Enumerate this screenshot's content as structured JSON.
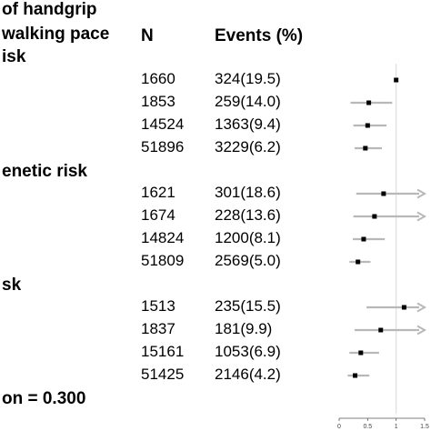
{
  "header": {
    "label_line1": "of handgrip",
    "label_line2": "walking pace",
    "label_line3": "isk",
    "col_n": "N",
    "col_events": "Events (%)"
  },
  "groups": [
    {
      "label": ""
    },
    {
      "label": "enetic risk"
    },
    {
      "label": "sk"
    }
  ],
  "footer": {
    "interaction": "on = 0.300"
  },
  "chart_data": {
    "type": "forest",
    "reference_line": 1,
    "xlim": [
      0,
      1.5
    ],
    "x_ticks": [
      {
        "value": 0,
        "label": "0"
      },
      {
        "value": 0.5,
        "label": "0.5"
      },
      {
        "value": 1,
        "label": "1"
      },
      {
        "value": 1.5,
        "label": "1.5"
      }
    ],
    "rows": [
      {
        "group": 0,
        "n": "1660",
        "events": "324(19.5)",
        "est": 1.0,
        "lo": 1.0,
        "hi": 1.0,
        "arrow": false
      },
      {
        "group": 0,
        "n": "1853",
        "events": "259(14.0)",
        "est": 0.52,
        "lo": 0.2,
        "hi": 0.93,
        "arrow": false
      },
      {
        "group": 0,
        "n": "14524",
        "events": "1363(9.4)",
        "est": 0.5,
        "lo": 0.25,
        "hi": 0.83,
        "arrow": false
      },
      {
        "group": 0,
        "n": "51896",
        "events": "3229(6.2)",
        "est": 0.46,
        "lo": 0.27,
        "hi": 0.75,
        "arrow": false
      },
      {
        "group": 1,
        "n": "1621",
        "events": "301(18.6)",
        "est": 0.78,
        "lo": 0.3,
        "hi": 1.5,
        "arrow": true
      },
      {
        "group": 1,
        "n": "1674",
        "events": "228(13.6)",
        "est": 0.62,
        "lo": 0.25,
        "hi": 1.5,
        "arrow": true
      },
      {
        "group": 1,
        "n": "14824",
        "events": "1200(8.1)",
        "est": 0.43,
        "lo": 0.24,
        "hi": 0.8,
        "arrow": false
      },
      {
        "group": 1,
        "n": "51809",
        "events": "2569(5.0)",
        "est": 0.33,
        "lo": 0.18,
        "hi": 0.55,
        "arrow": false
      },
      {
        "group": 2,
        "n": "1513",
        "events": "235(15.5)",
        "est": 1.14,
        "lo": 0.48,
        "hi": 1.5,
        "arrow": true
      },
      {
        "group": 2,
        "n": "1837",
        "events": "181(9.9)",
        "est": 0.73,
        "lo": 0.27,
        "hi": 1.5,
        "arrow": true
      },
      {
        "group": 2,
        "n": "15161",
        "events": "1053(6.9)",
        "est": 0.38,
        "lo": 0.18,
        "hi": 0.7,
        "arrow": false
      },
      {
        "group": 2,
        "n": "51425",
        "events": "2146(4.2)",
        "est": 0.28,
        "lo": 0.15,
        "hi": 0.53,
        "arrow": false
      }
    ]
  }
}
